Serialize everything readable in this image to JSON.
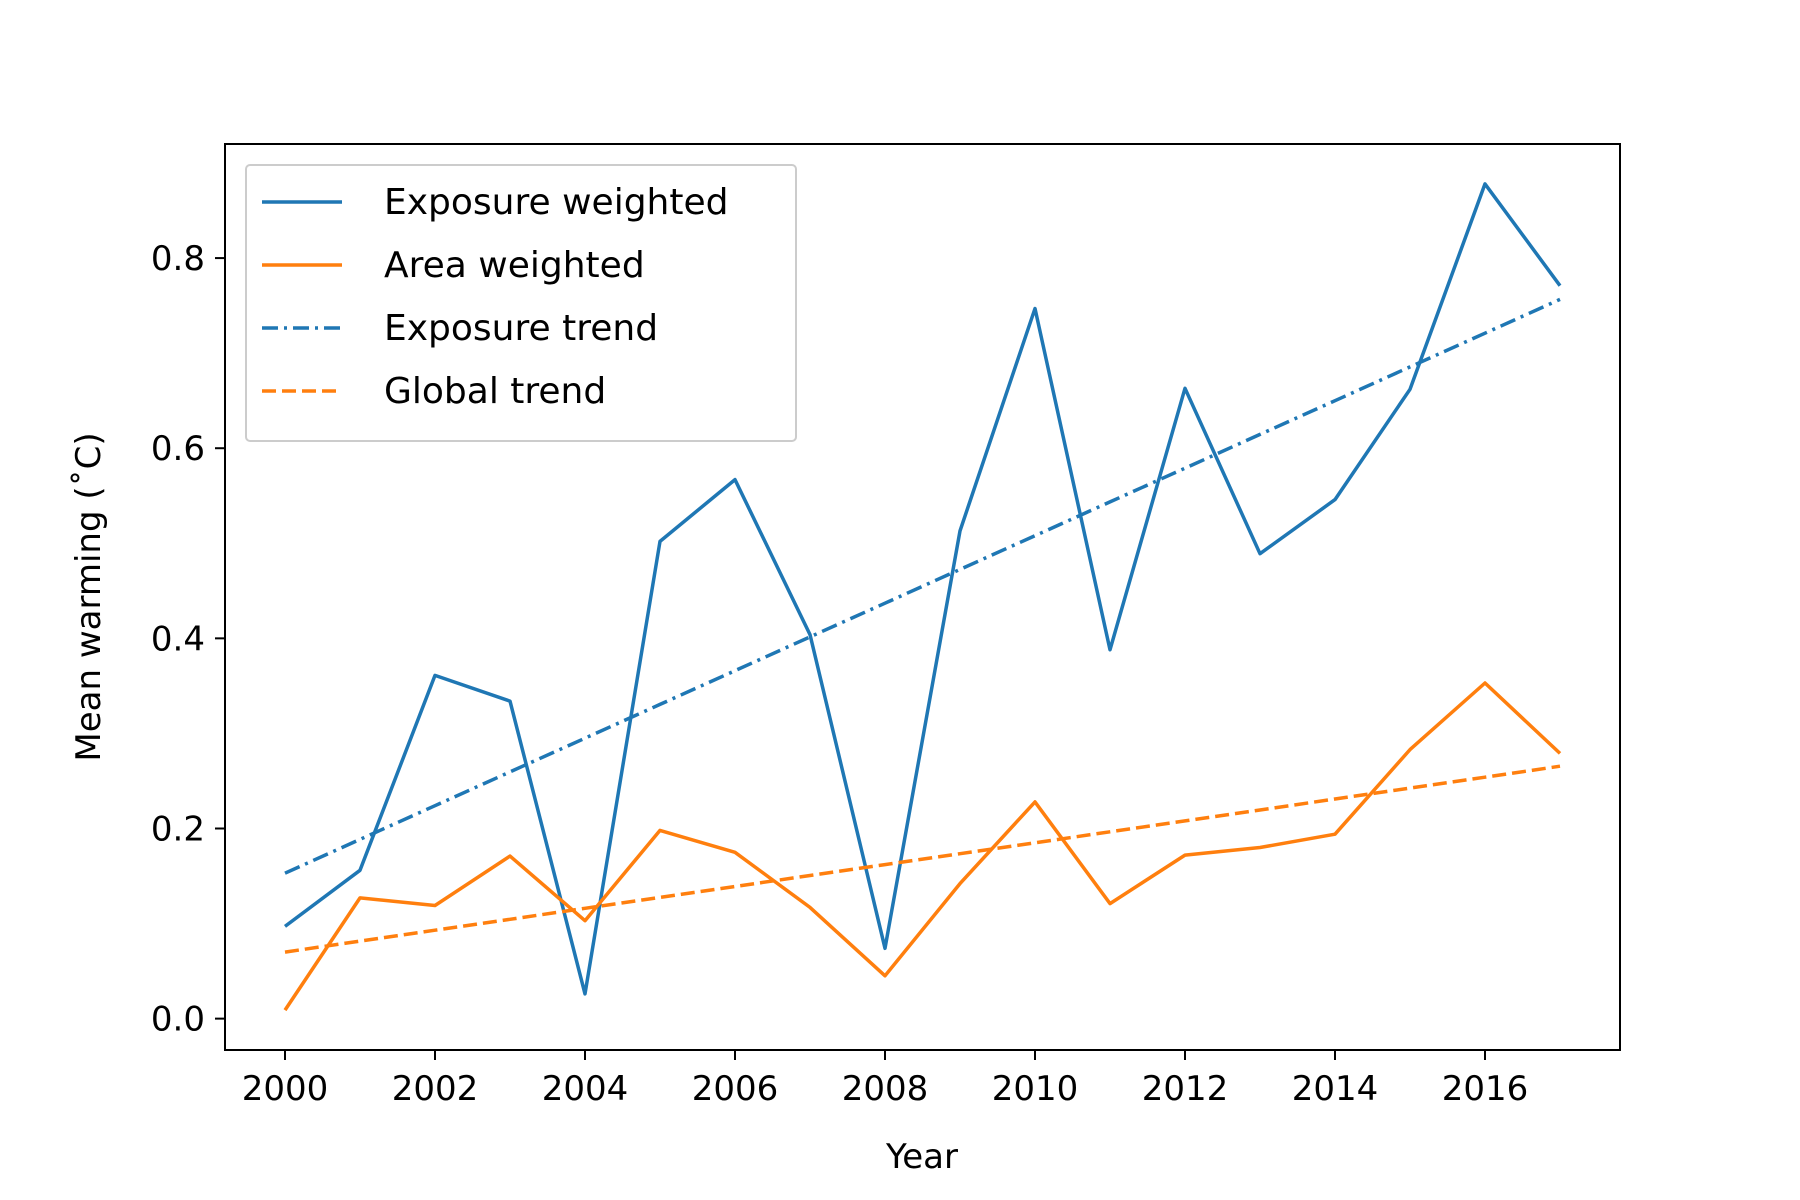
{
  "chart_data": {
    "type": "line",
    "title": "",
    "xlabel": "Year",
    "ylabel": "Mean warming (˚C)",
    "xlim": [
      1999.2,
      2017.8
    ],
    "ylim": [
      -0.033,
      0.92
    ],
    "xticks": [
      2000,
      2002,
      2004,
      2006,
      2008,
      2010,
      2012,
      2014,
      2016
    ],
    "xtick_labels": [
      "2000",
      "2002",
      "2004",
      "2006",
      "2008",
      "2010",
      "2012",
      "2014",
      "2016"
    ],
    "yticks": [
      0.0,
      0.2,
      0.4,
      0.6,
      0.8
    ],
    "ytick_labels": [
      "0.0",
      "0.2",
      "0.4",
      "0.6",
      "0.8"
    ],
    "grid": false,
    "legend_position": "top-left",
    "x": [
      2000,
      2001,
      2002,
      2003,
      2004,
      2005,
      2006,
      2007,
      2008,
      2009,
      2010,
      2011,
      2012,
      2013,
      2014,
      2015,
      2016,
      2017
    ],
    "series": [
      {
        "name": "Exposure weighted",
        "color": "#1f77b4",
        "style": "solid",
        "values": [
          0.097,
          0.156,
          0.361,
          0.334,
          0.026,
          0.502,
          0.567,
          0.404,
          0.074,
          0.513,
          0.747,
          0.388,
          0.663,
          0.489,
          0.546,
          0.662,
          0.878,
          0.771
        ]
      },
      {
        "name": "Area weighted",
        "color": "#ff7f0e",
        "style": "solid",
        "values": [
          0.009,
          0.127,
          0.119,
          0.171,
          0.103,
          0.198,
          0.175,
          0.117,
          0.045,
          0.142,
          0.228,
          0.121,
          0.172,
          0.18,
          0.194,
          0.283,
          0.353,
          0.279
        ]
      },
      {
        "name": "Exposure trend",
        "color": "#1f77b4",
        "style": "dashdot",
        "values": [
          0.153,
          0.1885,
          0.224,
          0.2595,
          0.295,
          0.3305,
          0.366,
          0.4015,
          0.437,
          0.4725,
          0.508,
          0.5435,
          0.579,
          0.6145,
          0.65,
          0.6855,
          0.721,
          0.7565
        ]
      },
      {
        "name": "Global trend",
        "color": "#ff7f0e",
        "style": "dashed",
        "values": [
          0.07,
          0.0815,
          0.093,
          0.1045,
          0.116,
          0.1275,
          0.139,
          0.1505,
          0.162,
          0.1735,
          0.185,
          0.1965,
          0.208,
          0.2195,
          0.231,
          0.2425,
          0.254,
          0.2655
        ]
      }
    ]
  }
}
